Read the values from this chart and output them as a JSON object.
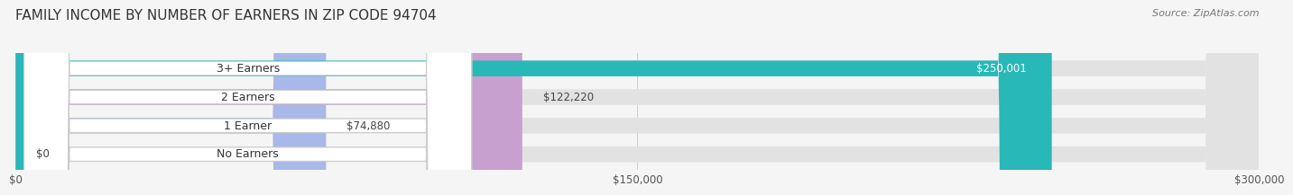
{
  "title": "FAMILY INCOME BY NUMBER OF EARNERS IN ZIP CODE 94704",
  "source": "Source: ZipAtlas.com",
  "categories": [
    "No Earners",
    "1 Earner",
    "2 Earners",
    "3+ Earners"
  ],
  "values": [
    0,
    74880,
    122220,
    250001
  ],
  "labels": [
    "$0",
    "$74,880",
    "$122,220",
    "$250,001"
  ],
  "bar_colors": [
    "#f4a0a0",
    "#a8b8e8",
    "#c8a0d0",
    "#28b8b8"
  ],
  "label_colors": [
    "#444444",
    "#444444",
    "#444444",
    "#ffffff"
  ],
  "background_color": "#f5f5f5",
  "bar_bg_color": "#e2e2e2",
  "xlim": [
    0,
    300000
  ],
  "xtick_values": [
    0,
    150000,
    300000
  ],
  "xtick_labels": [
    "$0",
    "$150,000",
    "$300,000"
  ],
  "title_fontsize": 11,
  "bar_height": 0.55,
  "fig_width": 14.06,
  "fig_height": 2.33
}
